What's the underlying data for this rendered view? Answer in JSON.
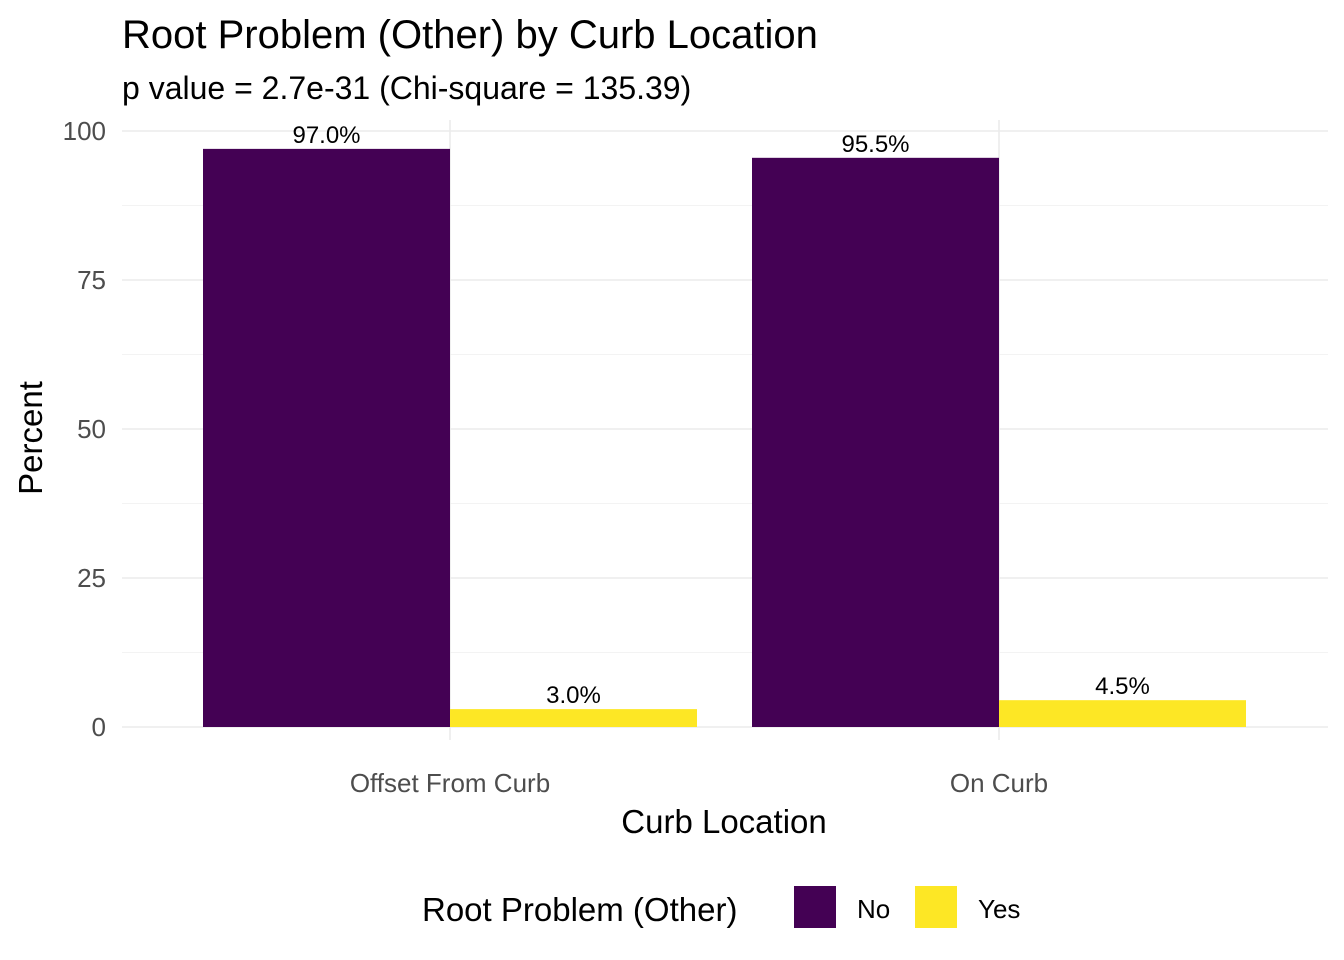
{
  "chart_data": {
    "type": "bar",
    "title": "Root Problem (Other) by Curb Location",
    "subtitle": "p value = 2.7e-31 (Chi-square = 135.39)",
    "xlabel": "Curb Location",
    "ylabel": "Percent",
    "categories": [
      "Offset From Curb",
      "On Curb"
    ],
    "series": [
      {
        "name": "No",
        "color": "#440154",
        "values": [
          97.0,
          95.5
        ],
        "labels": [
          "97.0%",
          "95.5%"
        ]
      },
      {
        "name": "Yes",
        "color": "#FDE725",
        "values": [
          3.0,
          4.5
        ],
        "labels": [
          "3.0%",
          "4.5%"
        ]
      }
    ],
    "ylim": [
      0,
      100
    ],
    "yticks": [
      0,
      25,
      50,
      75,
      100
    ],
    "ytick_labels": [
      "0",
      "25",
      "50",
      "75",
      "100"
    ],
    "grid": true,
    "legend": {
      "title": "Root Problem (Other)",
      "position": "bottom"
    }
  }
}
